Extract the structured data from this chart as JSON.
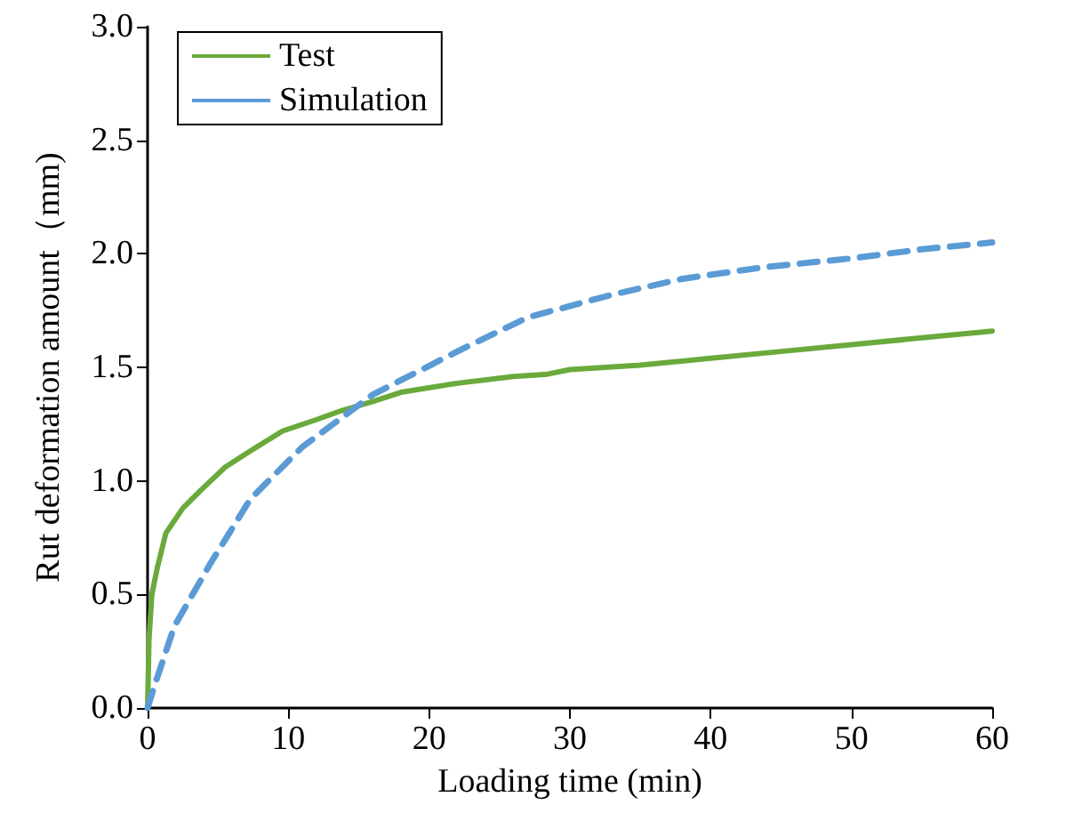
{
  "chart_data": {
    "type": "line",
    "xlabel": "Loading time (min)",
    "ylabel": "Rut deformation amount（mm)",
    "xlim": [
      0,
      60
    ],
    "ylim": [
      0,
      3
    ],
    "xticks": [
      0,
      10,
      20,
      30,
      40,
      50,
      60
    ],
    "yticks": [
      {
        "value": 0,
        "label": "0.0"
      },
      {
        "value": 0.5,
        "label": "0.5"
      },
      {
        "value": 1,
        "label": "1.0"
      },
      {
        "value": 1.5,
        "label": "1.5"
      },
      {
        "value": 2,
        "label": "2.0"
      },
      {
        "value": 2.5,
        "label": "2.5"
      },
      {
        "value": 3,
        "label": "3.0"
      }
    ],
    "grid": false,
    "legend": "top left",
    "marker": "none",
    "series": [
      {
        "name": "Test",
        "color": "#6aaa3c",
        "line_style": "solid",
        "x": [
          0,
          0.1,
          0.3,
          0.7,
          1.3,
          2.5,
          3.8,
          5.5,
          7.5,
          9.6,
          12,
          13.8,
          16,
          18,
          22,
          26,
          28.4,
          30,
          35,
          40,
          45,
          50,
          55,
          60
        ],
        "values": [
          0,
          0.3,
          0.5,
          0.62,
          0.77,
          0.88,
          0.96,
          1.06,
          1.14,
          1.22,
          1.27,
          1.31,
          1.35,
          1.39,
          1.43,
          1.46,
          1.47,
          1.49,
          1.51,
          1.54,
          1.57,
          1.6,
          1.63,
          1.66
        ]
      },
      {
        "name": "Simulation",
        "color": "#5b9bd5",
        "line_style": "dashed",
        "x": [
          0,
          0.5,
          1.9,
          4.4,
          7.3,
          11,
          16,
          22,
          27,
          33,
          38,
          43.7,
          50,
          55,
          60
        ],
        "values": [
          0,
          0.1,
          0.36,
          0.63,
          0.92,
          1.15,
          1.38,
          1.57,
          1.72,
          1.82,
          1.89,
          1.94,
          1.98,
          2.02,
          2.05
        ]
      }
    ]
  }
}
